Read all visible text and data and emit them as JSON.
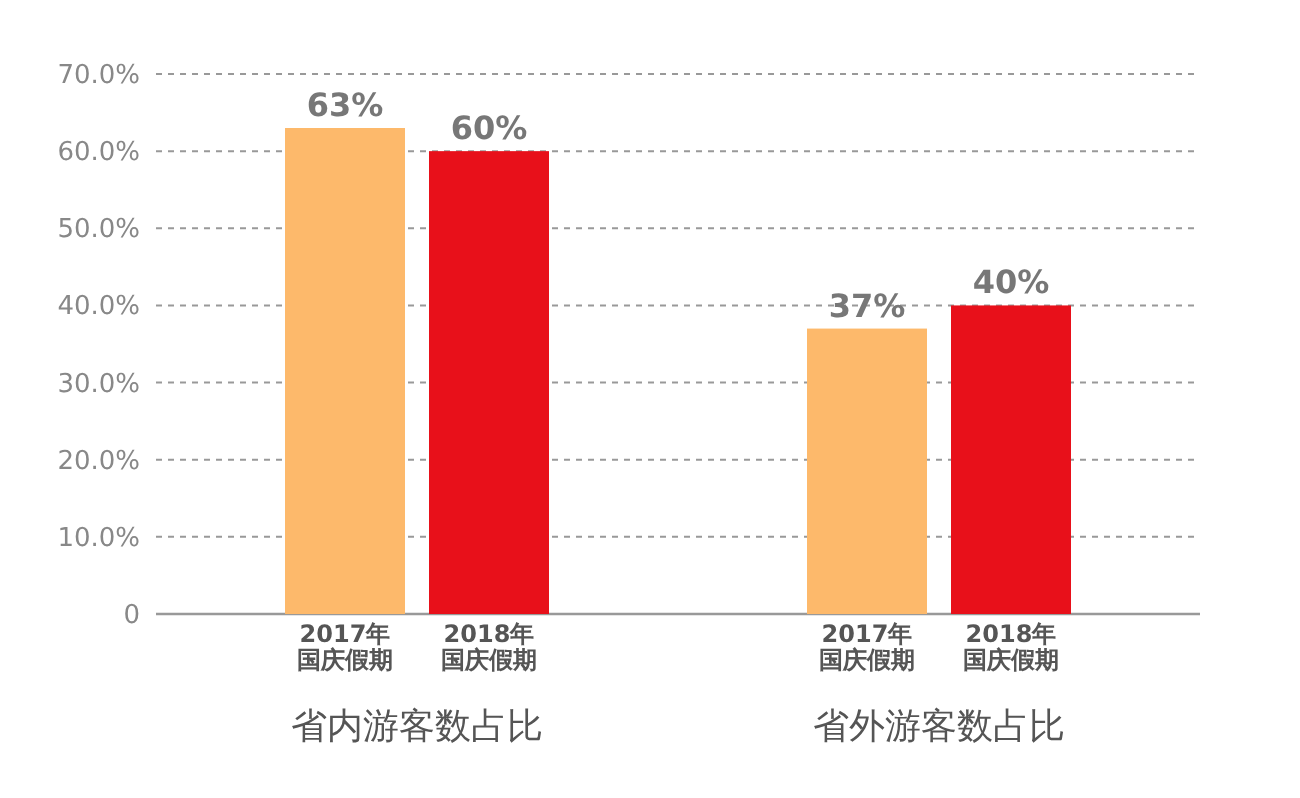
{
  "chart_data": {
    "type": "bar",
    "categories": [
      "省内游客数占比",
      "省外游客数占比"
    ],
    "series": [
      {
        "name": "2017年国庆假期",
        "color": "#fdb96b",
        "values": [
          63,
          37
        ],
        "value_labels": [
          "63%",
          "37%"
        ]
      },
      {
        "name": "2018年国庆假期",
        "color": "#e8101a",
        "values": [
          60,
          40
        ],
        "value_labels": [
          "60%",
          "40%"
        ]
      }
    ],
    "ylim": [
      0,
      70
    ],
    "yticks": [
      0,
      {
        "value": 10,
        "label": "10.0%"
      },
      {
        "value": 20,
        "label": "20.0%"
      },
      {
        "value": 30,
        "label": "30.0%"
      },
      {
        "value": 40,
        "label": "40.0%"
      },
      {
        "value": 50,
        "label": "50.0%"
      },
      {
        "value": 60,
        "label": "60.0%"
      },
      {
        "value": 70,
        "label": "70.0%"
      }
    ],
    "grid": "y",
    "legend": false
  }
}
